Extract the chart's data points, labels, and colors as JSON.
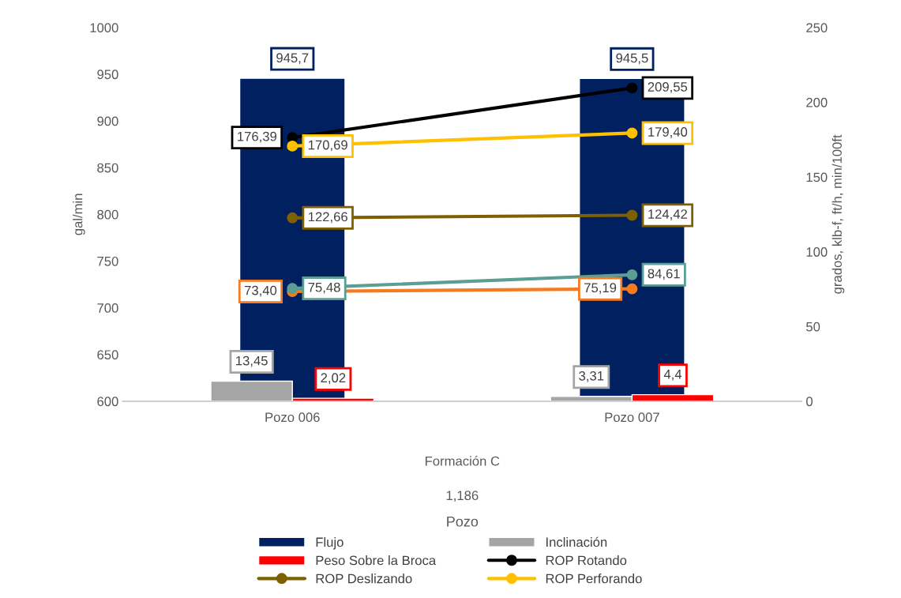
{
  "chart_data": {
    "type": "bar",
    "categories": [
      "Pozo 006",
      "Pozo 007"
    ],
    "ylabel": "gal/min",
    "y2label": "grados, klb-f, ft/h, min/100ft",
    "ylim": [
      600,
      1000
    ],
    "yticks": [
      600,
      650,
      700,
      750,
      800,
      850,
      900,
      950,
      1000
    ],
    "y2lim": [
      0,
      250
    ],
    "y2ticks": [
      0,
      50,
      100,
      150,
      200,
      250
    ],
    "legend": "bottom",
    "marker": "circle",
    "annotations": [
      "Formación C",
      "1,186",
      "Pozo"
    ],
    "series": [
      {
        "name": "Flujo",
        "axis": "y",
        "color": "#002060",
        "values": [
          945.7,
          945.5
        ],
        "value_labels": [
          "945,7",
          "945,5"
        ]
      },
      {
        "name": "Inclinación",
        "type": "bar",
        "axis": "y2",
        "color": "#a5a5a5",
        "values": [
          13.45,
          3.31
        ],
        "value_labels": [
          "13,45",
          "3,31"
        ]
      },
      {
        "name": "Peso Sobre la Broca",
        "type": "bar",
        "axis": "y2",
        "color": "#ff0000",
        "values": [
          2.02,
          4.4
        ],
        "value_labels": [
          "2,02",
          "4,4"
        ]
      },
      {
        "name": "ROP Rotando",
        "type": "line",
        "axis": "y2",
        "color": "#000000",
        "values": [
          176.39,
          209.55
        ],
        "value_labels": [
          "176,39",
          "209,55"
        ]
      },
      {
        "name": "ROP Deslizando",
        "type": "line",
        "axis": "y2",
        "color": "#7f6000",
        "values": [
          122.66,
          124.42
        ],
        "value_labels": [
          "122,66",
          "124,42"
        ]
      },
      {
        "name": "ROP Perforando",
        "type": "line",
        "axis": "y2",
        "color": "#ffc000",
        "values": [
          170.69,
          179.4
        ],
        "value_labels": [
          "170,69",
          "179,40"
        ]
      },
      {
        "type": "line",
        "axis": "y2",
        "color": "#f47b20",
        "values": [
          73.4,
          75.19
        ],
        "value_labels": [
          "73,40",
          "75,19"
        ]
      },
      {
        "type": "line",
        "axis": "y2",
        "color": "#5b9e94",
        "values": [
          75.48,
          84.61
        ],
        "value_labels": [
          "75,48",
          "84,61"
        ]
      }
    ]
  }
}
